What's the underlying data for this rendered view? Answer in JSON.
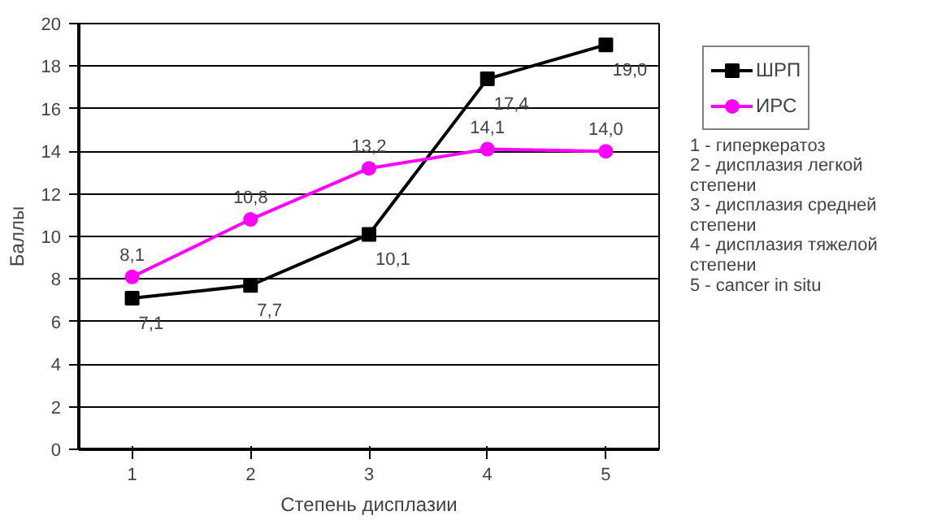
{
  "chart_data": {
    "type": "line",
    "xlabel": "Степень дисплазии",
    "ylabel": "Баллы",
    "x": [
      1,
      2,
      3,
      4,
      5
    ],
    "xlim": [
      0.55,
      5.45
    ],
    "xticks": [
      1,
      2,
      3,
      4,
      5
    ],
    "ylim": [
      0,
      20
    ],
    "yticks": [
      0,
      2,
      4,
      6,
      8,
      10,
      12,
      14,
      16,
      18,
      20
    ],
    "series": [
      {
        "name": "ШРП",
        "color": "#000000",
        "marker": "square",
        "values": [
          7.1,
          7.7,
          10.1,
          17.4,
          19.0
        ],
        "value_labels": [
          "7,1",
          "7,7",
          "10,1",
          "17,4",
          "19,0"
        ]
      },
      {
        "name": "ИРС",
        "color": "#ff00ff",
        "marker": "circle",
        "values": [
          8.1,
          10.8,
          13.2,
          14.1,
          14.0
        ],
        "value_labels": [
          "8,1",
          "10,8",
          "13,2",
          "14,1",
          "14,0"
        ]
      }
    ],
    "grid": "y",
    "legend": "right",
    "annotations": [
      "1 - гиперкератоз",
      "2 - дисплазия легкой степени",
      "3 - дисплазия средней степени",
      "4 - дисплазия тяжелой степени",
      "5 - cancer in situ"
    ]
  }
}
